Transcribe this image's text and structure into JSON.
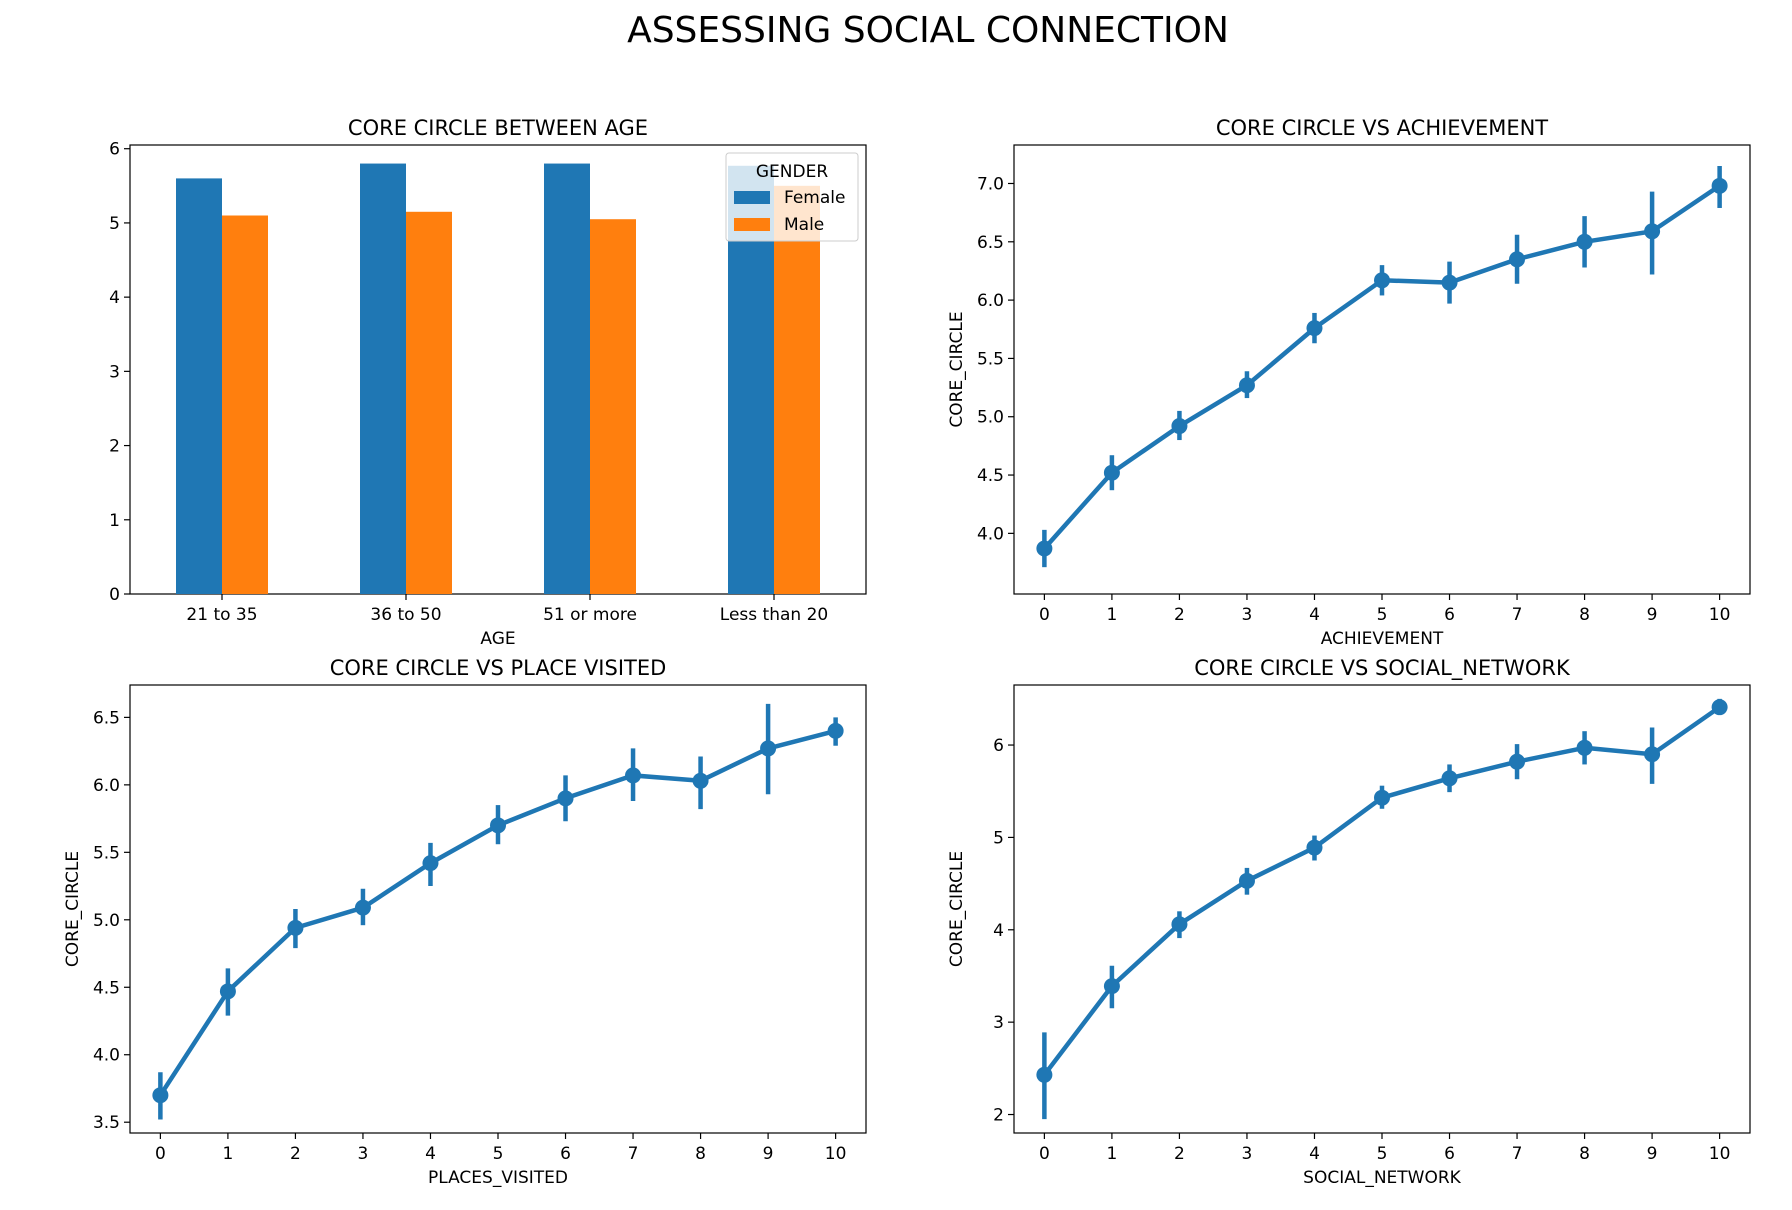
{
  "figure": {
    "title": "ASSESSING SOCIAL CONNECTION"
  },
  "colors": {
    "female": "#1f77b4",
    "male": "#ff7f0e",
    "line": "#1f77b4"
  },
  "chart_data": [
    {
      "type": "bar",
      "title": "CORE CIRCLE BETWEEN AGE",
      "xlabel": "AGE",
      "ylabel": "",
      "categories": [
        "21 to 35",
        "36 to 50",
        "51 or more",
        "Less than 20"
      ],
      "series": [
        {
          "name": "Female",
          "values": [
            5.6,
            5.8,
            5.8,
            5.77
          ]
        },
        {
          "name": "Male",
          "values": [
            5.1,
            5.15,
            5.05,
            5.5
          ]
        }
      ],
      "ylim": [
        0,
        6.05
      ],
      "yticks": [
        0,
        1,
        2,
        3,
        4,
        5,
        6
      ],
      "legend": {
        "title": "GENDER",
        "position": "upper right"
      },
      "grid": false
    },
    {
      "type": "line",
      "title": "CORE CIRCLE VS ACHIEVEMENT",
      "xlabel": "ACHIEVEMENT",
      "ylabel": "CORE_CIRCLE",
      "x": [
        0,
        1,
        2,
        3,
        4,
        5,
        6,
        7,
        8,
        9,
        10
      ],
      "y": [
        3.87,
        4.52,
        4.92,
        5.27,
        5.76,
        6.17,
        6.15,
        6.35,
        6.5,
        6.59,
        6.98
      ],
      "err_low": [
        3.71,
        4.37,
        4.8,
        5.16,
        5.63,
        6.04,
        5.97,
        6.14,
        6.28,
        6.22,
        6.79
      ],
      "err_high": [
        4.03,
        4.67,
        5.05,
        5.39,
        5.89,
        6.3,
        6.33,
        6.56,
        6.72,
        6.93,
        7.15
      ],
      "ylim": [
        3.48,
        7.33
      ],
      "yticks": [
        "4.0",
        "4.5",
        "5.0",
        "5.5",
        "6.0",
        "6.5",
        "7.0"
      ],
      "grid": false
    },
    {
      "type": "line",
      "title": "CORE CIRCLE VS PLACE VISITED",
      "xlabel": "PLACES_VISITED",
      "ylabel": "CORE_CIRCLE",
      "x": [
        0,
        1,
        2,
        3,
        4,
        5,
        6,
        7,
        8,
        9,
        10
      ],
      "y": [
        3.7,
        4.47,
        4.94,
        5.09,
        5.42,
        5.7,
        5.9,
        6.07,
        6.03,
        6.27,
        6.4
      ],
      "err_low": [
        3.52,
        4.29,
        4.79,
        4.96,
        5.25,
        5.56,
        5.73,
        5.88,
        5.82,
        5.93,
        6.29
      ],
      "err_high": [
        3.87,
        4.64,
        5.08,
        5.23,
        5.57,
        5.85,
        6.07,
        6.27,
        6.21,
        6.6,
        6.5
      ],
      "ylim": [
        3.42,
        6.74
      ],
      "yticks": [
        "3.5",
        "4.0",
        "4.5",
        "5.0",
        "5.5",
        "6.0",
        "6.5"
      ],
      "grid": false
    },
    {
      "type": "line",
      "title": "CORE CIRCLE VS SOCIAL_NETWORK",
      "xlabel": "SOCIAL_NETWORK",
      "ylabel": "CORE_CIRCLE",
      "x": [
        0,
        1,
        2,
        3,
        4,
        5,
        6,
        7,
        8,
        9,
        10
      ],
      "y": [
        2.43,
        3.39,
        4.06,
        4.53,
        4.89,
        5.43,
        5.64,
        5.82,
        5.97,
        5.9,
        6.41
      ],
      "err_low": [
        1.95,
        3.15,
        3.91,
        4.38,
        4.75,
        5.31,
        5.49,
        5.63,
        5.79,
        5.58,
        6.33
      ],
      "err_high": [
        2.89,
        3.61,
        4.2,
        4.67,
        5.02,
        5.56,
        5.79,
        6.01,
        6.15,
        6.19,
        6.5
      ],
      "ylim": [
        1.8,
        6.65
      ],
      "yticks": [
        "2",
        "3",
        "4",
        "5",
        "6"
      ],
      "grid": false
    }
  ]
}
